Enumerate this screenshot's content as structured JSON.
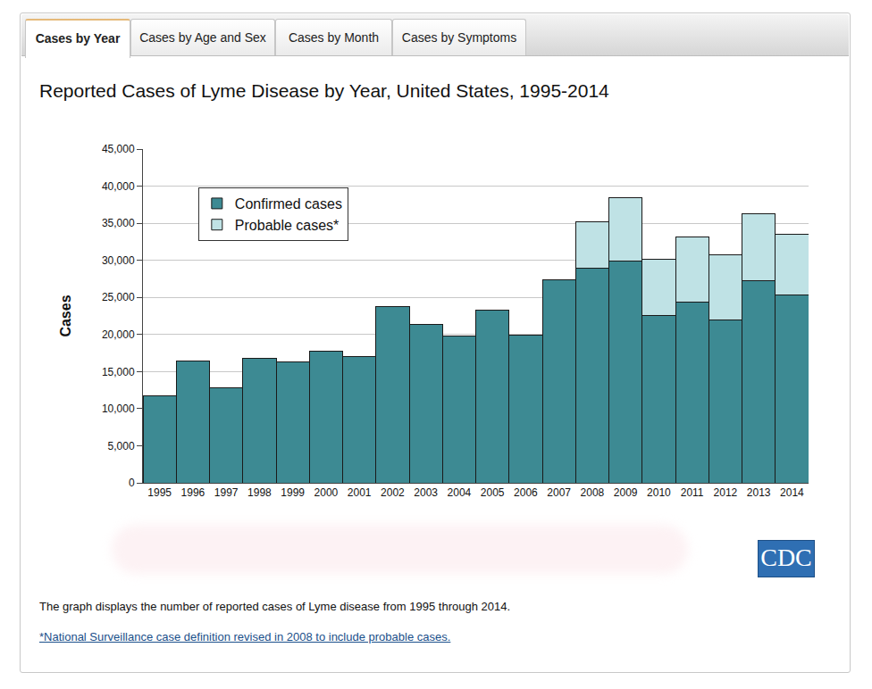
{
  "tabs": [
    "Cases by Year",
    "Cases by Age and Sex",
    "Cases by Month",
    "Cases by Symptoms"
  ],
  "active_tab": "Cases by Year",
  "chart_data": {
    "type": "bar",
    "title": "Reported Cases of Lyme Disease by Year, United States, 1995-2014",
    "y_label": "Cases",
    "categories": [
      "1995",
      "1996",
      "1997",
      "1998",
      "1999",
      "2000",
      "2001",
      "2002",
      "2003",
      "2004",
      "2005",
      "2006",
      "2007",
      "2008",
      "2009",
      "2010",
      "2011",
      "2012",
      "2013",
      "2014"
    ],
    "series": [
      {
        "name": "Confirmed cases",
        "color": "#3d8a93",
        "values": [
          11700,
          16450,
          12800,
          16800,
          16300,
          17700,
          17000,
          23800,
          21300,
          19800,
          23300,
          19900,
          27400,
          28900,
          29950,
          22550,
          24350,
          22000,
          27200,
          25350
        ]
      },
      {
        "name": "Probable cases*",
        "color": "#bfe2e5",
        "values": [
          null,
          null,
          null,
          null,
          null,
          null,
          null,
          null,
          null,
          null,
          null,
          null,
          null,
          6300,
          8550,
          7600,
          8750,
          8800,
          9100,
          8100
        ]
      }
    ],
    "stacked": true,
    "ylim": [
      0,
      45000
    ],
    "yticks": [
      0,
      {
        "value": 5000,
        "label": "5,000"
      },
      {
        "value": 10000,
        "label": "10,000"
      },
      {
        "value": 15000,
        "label": "15,000"
      },
      {
        "value": 20000,
        "label": "20,000"
      },
      {
        "value": 25000,
        "label": "25,000"
      },
      {
        "value": 30000,
        "label": "30,000"
      },
      {
        "value": 35000,
        "label": "35,000"
      },
      {
        "value": 40000,
        "label": "40,000"
      },
      {
        "value": 45000,
        "label": "45,000"
      }
    ],
    "grid": true,
    "legend": "upper left"
  },
  "logo": "CDC",
  "caption": "The graph displays the number of reported cases of Lyme disease from 1995 through 2014.",
  "footnote": "*National Surveillance case definition revised in 2008 to include probable cases."
}
